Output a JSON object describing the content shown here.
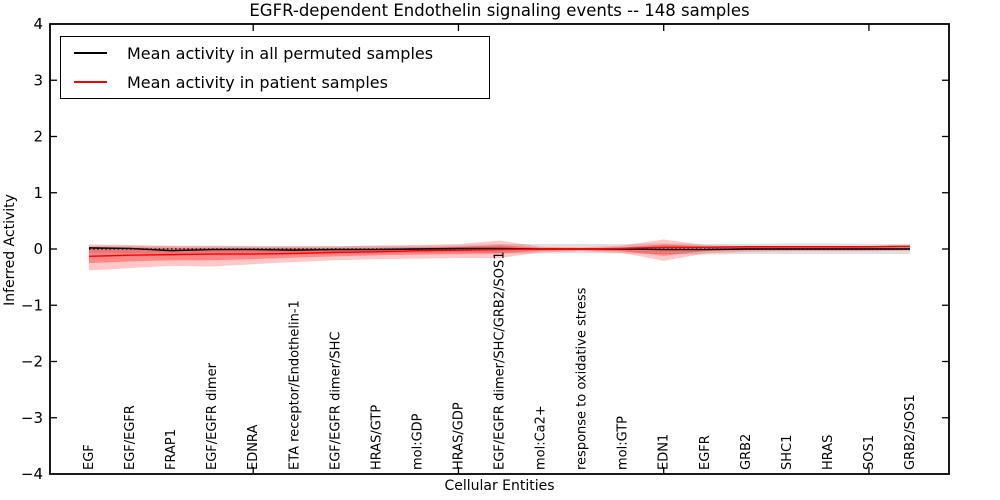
{
  "title": "EGFR-dependent Endothelin signaling events -- 148 samples",
  "axes": {
    "ylabel": "Inferred Activity",
    "xlabel": "Cellular Entities",
    "yticks": [
      "4",
      "3",
      "2",
      "1",
      "0",
      "−1",
      "−2",
      "−3",
      "−4"
    ],
    "ylim": [
      -4,
      4
    ]
  },
  "legend": {
    "items": [
      {
        "label": "Mean activity in all permuted samples",
        "color": "#000000"
      },
      {
        "label": "Mean activity in patient samples",
        "color": "#ff0000"
      }
    ]
  },
  "chart_data": {
    "type": "line",
    "title": "EGFR-dependent Endothelin signaling events -- 148 samples",
    "xlabel": "Cellular Entities",
    "ylabel": "Inferred Activity",
    "ylim": [
      -4,
      4
    ],
    "legend_position": "upper left",
    "grid": false,
    "categories": [
      "EGF",
      "EGF/EGFR",
      "FRAP1",
      "EGF/EGFR dimer",
      "EDNRA",
      "ETA receptor/Endothelin-1",
      "EGF/EGFR dimer/SHC",
      "HRAS/GTP",
      "mol:GDP",
      "HRAS/GDP",
      "EGF/EGFR dimer/SHC/GRB2/SOS1",
      "mol:Ca2+",
      "response to oxidative stress",
      "mol:GTP",
      "EDN1",
      "EGFR",
      "GRB2",
      "SHC1",
      "HRAS",
      "SOS1",
      "GRB2/SOS1"
    ],
    "series": [
      {
        "name": "Mean activity in all permuted samples",
        "color": "#000000",
        "values": [
          0.02,
          0.01,
          -0.03,
          -0.01,
          -0.01,
          -0.02,
          -0.01,
          -0.01,
          0.0,
          0.01,
          0.01,
          0.0,
          0.0,
          0.0,
          -0.01,
          -0.01,
          0.0,
          0.0,
          0.0,
          0.0,
          0.0
        ]
      },
      {
        "name": "Mean activity in patient samples",
        "color": "#ff0000",
        "values": [
          -0.13,
          -0.11,
          -0.1,
          -0.09,
          -0.09,
          -0.08,
          -0.06,
          -0.05,
          -0.03,
          -0.02,
          -0.01,
          0.0,
          0.0,
          0.01,
          0.03,
          0.03,
          0.04,
          0.04,
          0.04,
          0.04,
          0.05
        ]
      }
    ],
    "bands": [
      {
        "name": "permuted-std",
        "color": "rgba(0,0,0,0.12)",
        "high": [
          0.06,
          0.06,
          0.05,
          0.05,
          0.05,
          0.05,
          0.05,
          0.06,
          0.06,
          0.07,
          0.09,
          0.09,
          0.09,
          0.09,
          0.1,
          0.09,
          0.09,
          0.1,
          0.1,
          0.09,
          0.09
        ],
        "low": [
          -0.07,
          -0.07,
          -0.09,
          -0.08,
          -0.08,
          -0.08,
          -0.08,
          -0.08,
          -0.07,
          -0.06,
          -0.08,
          -0.08,
          -0.08,
          -0.08,
          -0.09,
          -0.1,
          -0.09,
          -0.09,
          -0.09,
          -0.09,
          -0.09
        ]
      },
      {
        "name": "patient-outer",
        "color": "rgba(255,0,0,0.22)",
        "high": [
          0.08,
          0.07,
          0.06,
          0.06,
          0.05,
          0.05,
          0.05,
          0.06,
          0.07,
          0.09,
          0.15,
          0.04,
          0.03,
          0.06,
          0.17,
          0.07,
          0.05,
          0.05,
          0.05,
          0.05,
          0.06
        ],
        "low": [
          -0.38,
          -0.34,
          -0.3,
          -0.31,
          -0.27,
          -0.23,
          -0.2,
          -0.18,
          -0.17,
          -0.16,
          -0.16,
          -0.06,
          -0.04,
          -0.07,
          -0.21,
          -0.08,
          -0.05,
          -0.04,
          -0.04,
          -0.04,
          -0.03
        ]
      },
      {
        "name": "patient-inner",
        "color": "rgba(255,0,0,0.32)",
        "high": [
          0.03,
          0.03,
          0.02,
          0.02,
          0.02,
          0.02,
          0.02,
          0.02,
          0.03,
          0.04,
          0.07,
          0.02,
          0.01,
          0.03,
          0.08,
          0.05,
          0.05,
          0.05,
          0.05,
          0.05,
          0.06
        ],
        "low": [
          -0.25,
          -0.22,
          -0.2,
          -0.2,
          -0.18,
          -0.15,
          -0.13,
          -0.11,
          -0.1,
          -0.09,
          -0.08,
          -0.03,
          -0.02,
          -0.04,
          -0.12,
          -0.04,
          -0.02,
          -0.02,
          -0.02,
          -0.02,
          -0.01
        ]
      }
    ],
    "zero_line": {
      "style": "dotted",
      "color": "#000000",
      "y": 0
    }
  }
}
